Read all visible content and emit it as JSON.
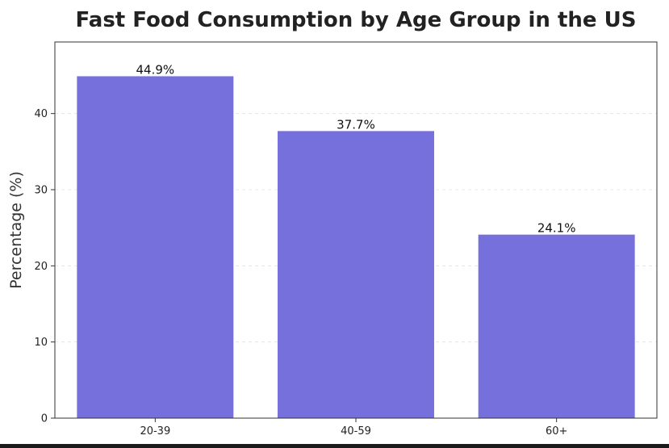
{
  "chart_data": {
    "type": "bar",
    "title": "Fast Food Consumption by Age Group in the US",
    "xlabel": "",
    "ylabel": "Percentage (%)",
    "categories": [
      "20-39",
      "40-59",
      "60+"
    ],
    "values": [
      44.9,
      37.7,
      24.1
    ],
    "data_labels": [
      "44.9%",
      "37.7%",
      "24.1%"
    ],
    "ylim": [
      0,
      49.4
    ],
    "yticks": [
      0,
      10,
      20,
      30,
      40
    ],
    "grid": true,
    "bar_color": "#7570dc"
  }
}
